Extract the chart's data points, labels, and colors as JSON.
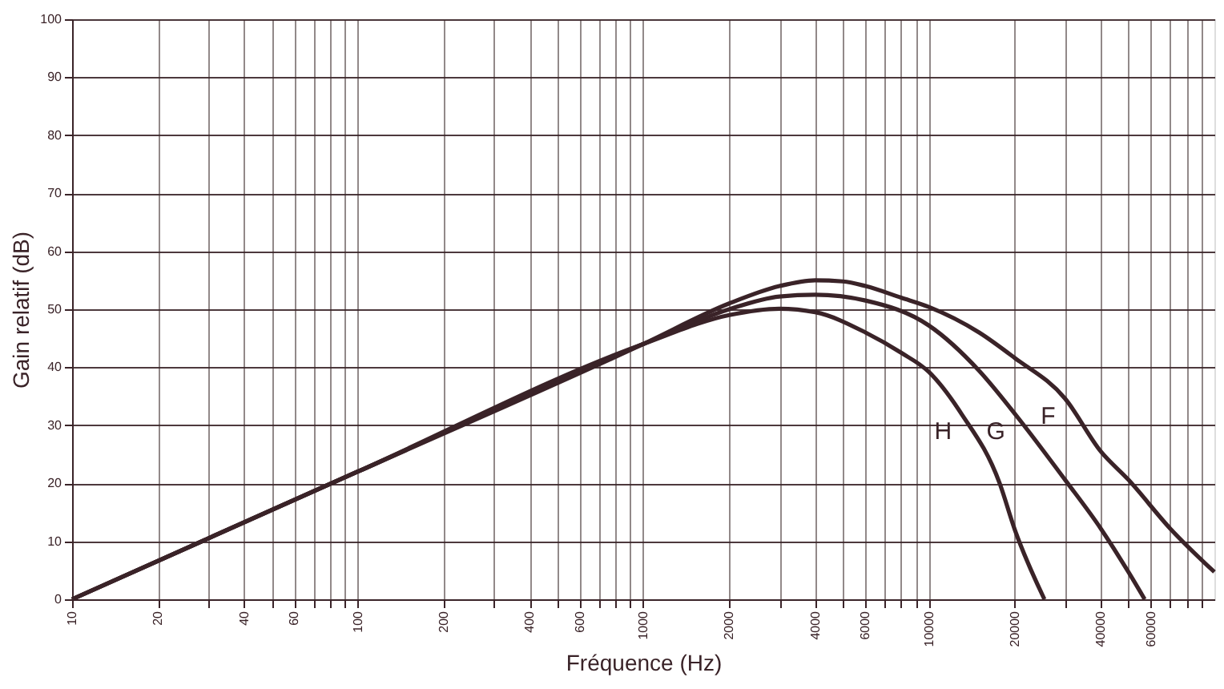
{
  "chart_data": {
    "type": "line",
    "xlabel": "Fréquence (Hz)",
    "ylabel": "Gain relatif (dB)",
    "log": "x",
    "grid": true,
    "marker": "none",
    "line_style": "solid",
    "xlim": [
      10,
      100000
    ],
    "ylim": [
      0,
      100
    ],
    "xticks": [
      10,
      20,
      {
        "value": 30,
        "label": null
      },
      40,
      {
        "value": 50,
        "label": null
      },
      60,
      {
        "value": 70,
        "label": null
      },
      {
        "value": 80,
        "label": null
      },
      {
        "value": 90,
        "label": null
      },
      100,
      200,
      {
        "value": 300,
        "label": null
      },
      400,
      {
        "value": 500,
        "label": null
      },
      600,
      {
        "value": 700,
        "label": null
      },
      {
        "value": 800,
        "label": null
      },
      {
        "value": 900,
        "label": null
      },
      1000,
      2000,
      {
        "value": 3000,
        "label": null
      },
      4000,
      {
        "value": 5000,
        "label": null
      },
      6000,
      {
        "value": 7000,
        "label": null
      },
      {
        "value": 8000,
        "label": null
      },
      {
        "value": 9000,
        "label": null
      },
      10000,
      20000,
      {
        "value": 30000,
        "label": null
      },
      40000,
      {
        "value": 50000,
        "label": null
      },
      60000,
      {
        "value": 70000,
        "label": null
      },
      {
        "value": 80000,
        "label": null
      },
      {
        "value": 90000,
        "label": null
      }
    ],
    "yticks": [
      0,
      10,
      20,
      30,
      40,
      50,
      60,
      70,
      80,
      90,
      100
    ],
    "series": [
      {
        "color": "#3a2328",
        "x": [
          10,
          100,
          1000,
          2000,
          3000,
          4000,
          5000,
          6000,
          8000,
          10000,
          15000,
          20000,
          30000,
          40000,
          50000,
          70000,
          100000
        ],
        "values": [
          0,
          22,
          44,
          51,
          54,
          55,
          54.8,
          54,
          52,
          50.4,
          46,
          41.6,
          34.6,
          25.5,
          20.6,
          12.2,
          4.7
        ]
      },
      {
        "color": "#3a2328",
        "x": [
          10,
          100,
          1000,
          2000,
          3000,
          4000,
          6000,
          10000,
          15000,
          20000,
          30000,
          40000,
          50000,
          57000
        ],
        "values": [
          0,
          22,
          44,
          50,
          52.2,
          52.5,
          51.5,
          47.2,
          39.4,
          32,
          20.6,
          12.2,
          4.7,
          0
        ]
      },
      {
        "color": "#3a2328",
        "x": [
          10,
          100,
          1000,
          2000,
          3000,
          4000,
          6000,
          8000,
          10000,
          13000,
          17700,
          20000,
          25400
        ],
        "values": [
          0,
          22,
          44,
          49,
          50.1,
          49.5,
          46,
          42.5,
          39.2,
          32,
          20,
          12,
          0
        ]
      }
    ],
    "annotations": [
      {
        "text": "F",
        "x": 30000,
        "y": 34.6
      },
      {
        "text": "G",
        "x": 20000,
        "y": 32
      },
      {
        "text": "H",
        "x": 13000,
        "y": 32
      }
    ]
  }
}
